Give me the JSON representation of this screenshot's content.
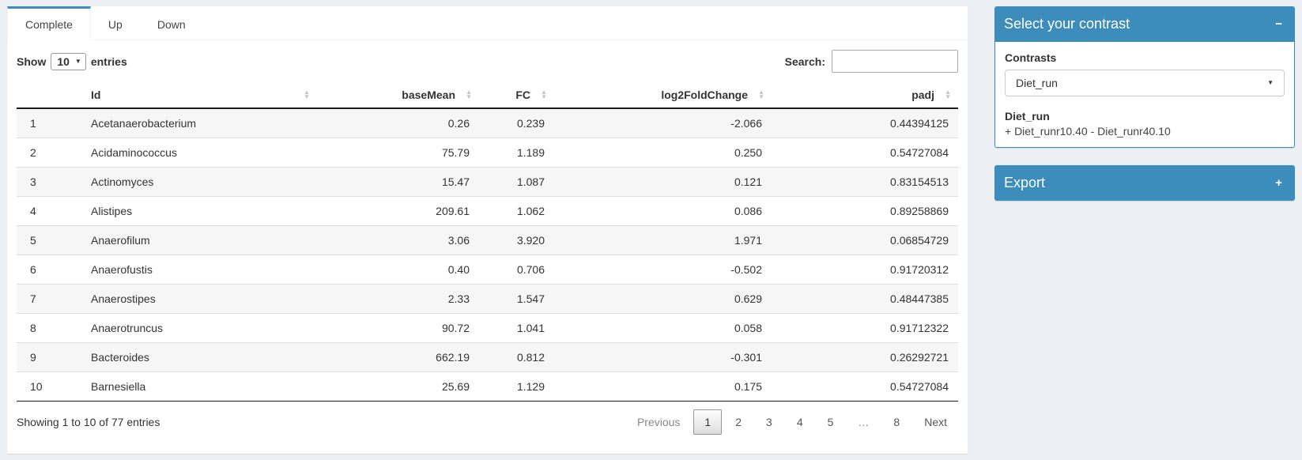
{
  "tabs": [
    {
      "label": "Complete",
      "active": true
    },
    {
      "label": "Up",
      "active": false
    },
    {
      "label": "Down",
      "active": false
    }
  ],
  "controls": {
    "show_label": "Show",
    "page_length": "10",
    "entries_label": "entries",
    "search_label": "Search:",
    "search_value": ""
  },
  "table": {
    "columns": [
      {
        "key": "num",
        "label": "",
        "align": "left",
        "sortable": false
      },
      {
        "key": "id",
        "label": "Id",
        "align": "left",
        "sortable": true
      },
      {
        "key": "baseMean",
        "label": "baseMean",
        "align": "right",
        "sortable": true
      },
      {
        "key": "fc",
        "label": "FC",
        "align": "right",
        "sortable": true
      },
      {
        "key": "log2fc",
        "label": "log2FoldChange",
        "align": "right",
        "sortable": true
      },
      {
        "key": "padj",
        "label": "padj",
        "align": "right",
        "sortable": true
      }
    ],
    "rows": [
      {
        "num": "1",
        "id": "Acetanaerobacterium",
        "baseMean": "0.26",
        "fc": "0.239",
        "log2fc": "-2.066",
        "padj": "0.44394125"
      },
      {
        "num": "2",
        "id": "Acidaminococcus",
        "baseMean": "75.79",
        "fc": "1.189",
        "log2fc": "0.250",
        "padj": "0.54727084"
      },
      {
        "num": "3",
        "id": "Actinomyces",
        "baseMean": "15.47",
        "fc": "1.087",
        "log2fc": "0.121",
        "padj": "0.83154513"
      },
      {
        "num": "4",
        "id": "Alistipes",
        "baseMean": "209.61",
        "fc": "1.062",
        "log2fc": "0.086",
        "padj": "0.89258869"
      },
      {
        "num": "5",
        "id": "Anaerofilum",
        "baseMean": "3.06",
        "fc": "3.920",
        "log2fc": "1.971",
        "padj": "0.06854729"
      },
      {
        "num": "6",
        "id": "Anaerofustis",
        "baseMean": "0.40",
        "fc": "0.706",
        "log2fc": "-0.502",
        "padj": "0.91720312"
      },
      {
        "num": "7",
        "id": "Anaerostipes",
        "baseMean": "2.33",
        "fc": "1.547",
        "log2fc": "0.629",
        "padj": "0.48447385"
      },
      {
        "num": "8",
        "id": "Anaerotruncus",
        "baseMean": "90.72",
        "fc": "1.041",
        "log2fc": "0.058",
        "padj": "0.91712322"
      },
      {
        "num": "9",
        "id": "Bacteroides",
        "baseMean": "662.19",
        "fc": "0.812",
        "log2fc": "-0.301",
        "padj": "0.26292721"
      },
      {
        "num": "10",
        "id": "Barnesiella",
        "baseMean": "25.69",
        "fc": "1.129",
        "log2fc": "0.175",
        "padj": "0.54727084"
      }
    ]
  },
  "footer": {
    "info": "Showing 1 to 10 of 77 entries",
    "pages": [
      {
        "label": "Previous",
        "state": "disabled"
      },
      {
        "label": "1",
        "state": "active"
      },
      {
        "label": "2"
      },
      {
        "label": "3"
      },
      {
        "label": "4"
      },
      {
        "label": "5"
      },
      {
        "label": "…",
        "state": "disabled"
      },
      {
        "label": "8"
      },
      {
        "label": "Next"
      }
    ]
  },
  "contrast_panel": {
    "title": "Select your contrast",
    "contrasts_label": "Contrasts",
    "selected": "Diet_run",
    "result_name": "Diet_run",
    "result_formula": "+ Diet_runr10.40 - Diet_runr40.10"
  },
  "export_panel": {
    "title": "Export"
  },
  "icons": {
    "sort_asc": "▲",
    "sort_desc": "▼",
    "collapse": "−",
    "expand": "+",
    "caret_down": "▼"
  },
  "colors": {
    "primary": "#3c8dbc",
    "page_bg": "#ecf0f5",
    "stripe": "#f6f6f6",
    "row_border": "#dddddd",
    "table_edge_border": "#1c1c1c"
  }
}
